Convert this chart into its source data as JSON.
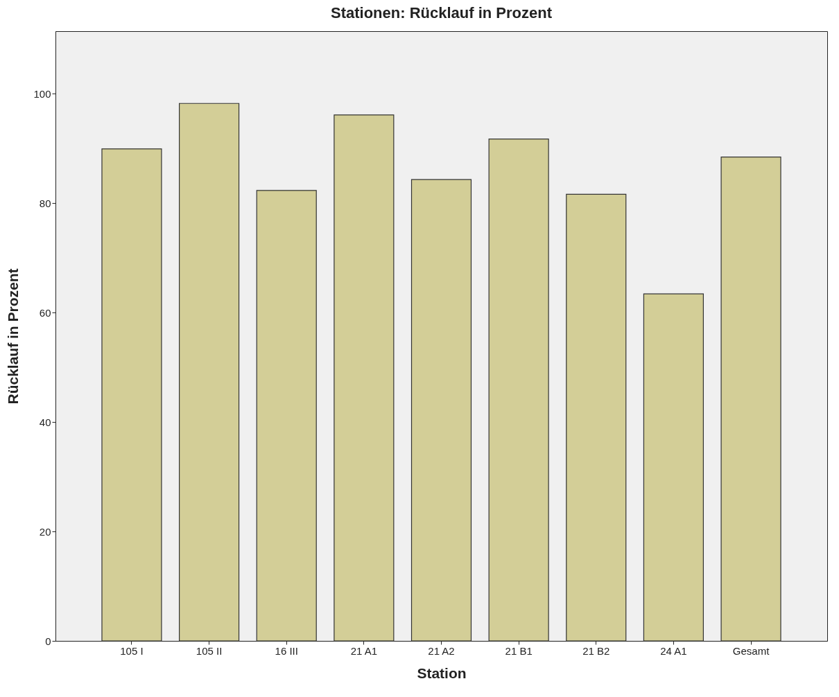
{
  "chart_data": {
    "type": "bar",
    "title": "Stationen: Rücklauf in Prozent",
    "xlabel": "Station",
    "ylabel": "Rücklauf in Prozent",
    "categories": [
      "105 I",
      "105 II",
      "16 III",
      "21 A1",
      "21 A2",
      "21 B1",
      "21 B2",
      "24 A1",
      "Gesamt"
    ],
    "values": [
      89.9,
      98.2,
      82.3,
      96.1,
      84.3,
      91.7,
      81.6,
      63.4,
      88.4
    ],
    "color": "#d3ce97",
    "ylim": [
      0,
      111.4
    ],
    "yticks": [
      0,
      20,
      40,
      60,
      80,
      100
    ],
    "grid": false
  }
}
